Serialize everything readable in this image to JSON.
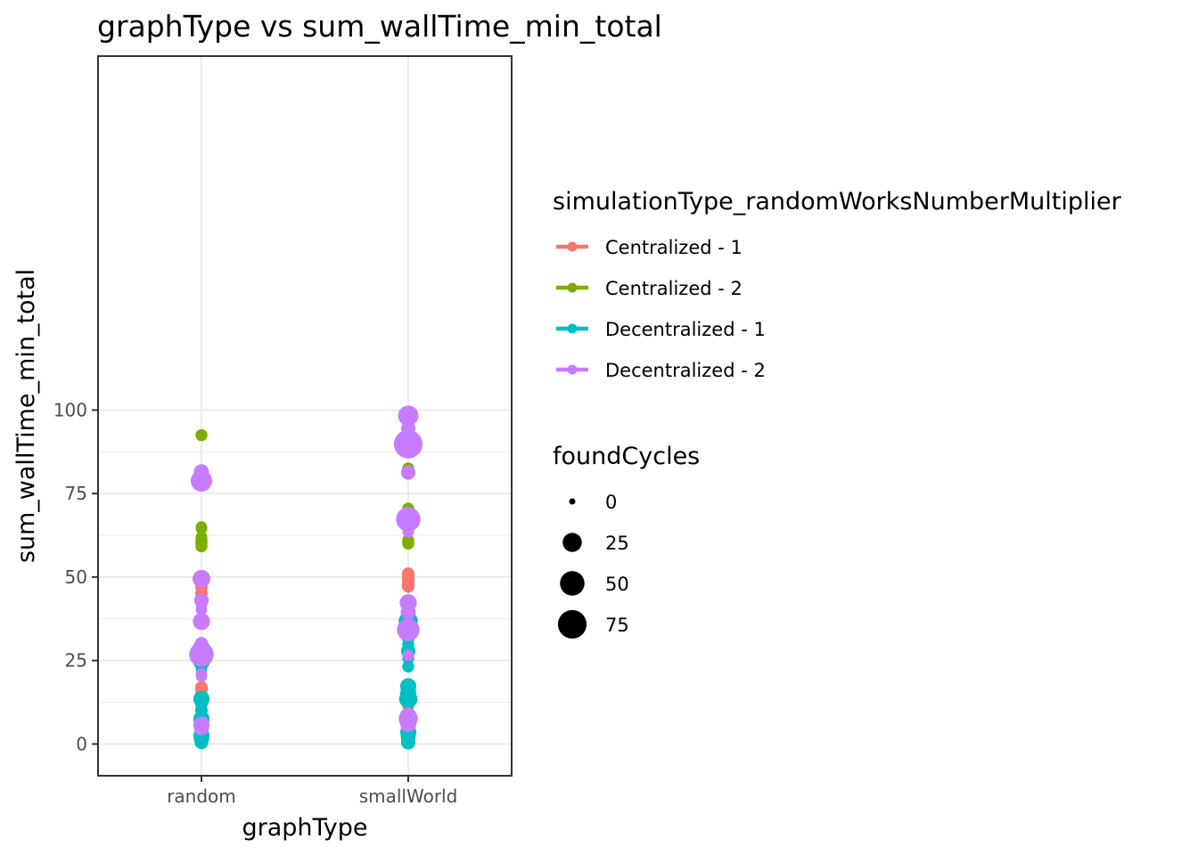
{
  "chart_data": {
    "type": "scatter",
    "title": "graphType  vs  sum_wallTime_min_total",
    "xlabel": "graphType",
    "ylabel": "sum_wallTime_min_total",
    "categories": [
      "random",
      "smallWorld"
    ],
    "ylim": [
      -9.5,
      206
    ],
    "yticks": [
      0,
      25,
      50,
      75,
      100
    ],
    "grid": true,
    "legend_position": "right",
    "color_legend": {
      "title": "simulationType_randomWorksNumberMultiplier",
      "entries": [
        {
          "label": "Centralized - 1",
          "color": "#F8766D"
        },
        {
          "label": "Centralized - 2",
          "color": "#7CAE00"
        },
        {
          "label": "Decentralized - 1",
          "color": "#00BFC4"
        },
        {
          "label": "Decentralized - 2",
          "color": "#C77CFF"
        }
      ]
    },
    "size_legend": {
      "title": "foundCycles",
      "entries": [
        {
          "label": "0",
          "value": 0
        },
        {
          "label": "25",
          "value": 25
        },
        {
          "label": "50",
          "value": 50
        },
        {
          "label": "75",
          "value": 75
        }
      ]
    },
    "series": [
      {
        "name": "Centralized - 1",
        "color": "#F8766D",
        "points": [
          {
            "x": "random",
            "y": 49.5,
            "size": 8
          },
          {
            "x": "random",
            "y": 48.7,
            "size": 8
          },
          {
            "x": "random",
            "y": 48.0,
            "size": 6
          },
          {
            "x": "random",
            "y": 47.0,
            "size": 6
          },
          {
            "x": "random",
            "y": 45.0,
            "size": 6
          },
          {
            "x": "random",
            "y": 17.0,
            "size": 6
          },
          {
            "x": "random",
            "y": 16.3,
            "size": 6
          },
          {
            "x": "random",
            "y": 14.8,
            "size": 6
          },
          {
            "x": "random",
            "y": 13.8,
            "size": 6
          },
          {
            "x": "random",
            "y": 12.8,
            "size": 6
          },
          {
            "x": "random",
            "y": 11.5,
            "size": 4
          },
          {
            "x": "random",
            "y": 2.0,
            "size": 4
          },
          {
            "x": "random",
            "y": 1.0,
            "size": 4
          },
          {
            "x": "random",
            "y": 0.4,
            "size": 4
          },
          {
            "x": "smallWorld",
            "y": 51.0,
            "size": 6
          },
          {
            "x": "smallWorld",
            "y": 50.0,
            "size": 6
          },
          {
            "x": "smallWorld",
            "y": 49.0,
            "size": 6
          },
          {
            "x": "smallWorld",
            "y": 48.0,
            "size": 6
          },
          {
            "x": "smallWorld",
            "y": 47.2,
            "size": 6
          },
          {
            "x": "smallWorld",
            "y": 16.8,
            "size": 6
          },
          {
            "x": "smallWorld",
            "y": 13.0,
            "size": 6
          },
          {
            "x": "smallWorld",
            "y": 12.0,
            "size": 4
          },
          {
            "x": "smallWorld",
            "y": 3.0,
            "size": 4
          },
          {
            "x": "smallWorld",
            "y": 1.2,
            "size": 4
          }
        ]
      },
      {
        "name": "Centralized - 2",
        "color": "#7CAE00",
        "points": [
          {
            "x": "random",
            "y": 92.5,
            "size": 5
          },
          {
            "x": "random",
            "y": 65.0,
            "size": 4
          },
          {
            "x": "random",
            "y": 64.5,
            "size": 4
          },
          {
            "x": "random",
            "y": 62.0,
            "size": 4
          },
          {
            "x": "random",
            "y": 61.2,
            "size": 5
          },
          {
            "x": "random",
            "y": 60.5,
            "size": 5
          },
          {
            "x": "random",
            "y": 60.0,
            "size": 5
          },
          {
            "x": "random",
            "y": 59.2,
            "size": 5
          },
          {
            "x": "random",
            "y": 12.2,
            "size": 4
          },
          {
            "x": "random",
            "y": 11.0,
            "size": 4
          },
          {
            "x": "random",
            "y": 4.5,
            "size": 4
          },
          {
            "x": "random",
            "y": 3.0,
            "size": 4
          },
          {
            "x": "random",
            "y": 2.2,
            "size": 4
          },
          {
            "x": "smallWorld",
            "y": 82.5,
            "size": 5
          },
          {
            "x": "smallWorld",
            "y": 70.5,
            "size": 5
          },
          {
            "x": "smallWorld",
            "y": 61.0,
            "size": 5
          },
          {
            "x": "smallWorld",
            "y": 60.4,
            "size": 5
          },
          {
            "x": "smallWorld",
            "y": 60.0,
            "size": 5
          },
          {
            "x": "smallWorld",
            "y": 12.5,
            "size": 5
          },
          {
            "x": "smallWorld",
            "y": 11.5,
            "size": 5
          },
          {
            "x": "smallWorld",
            "y": 3.5,
            "size": 4
          },
          {
            "x": "smallWorld",
            "y": 1.5,
            "size": 4
          }
        ]
      },
      {
        "name": "Decentralized - 1",
        "color": "#00BFC4",
        "points": [
          {
            "x": "random",
            "y": 29.0,
            "size": 15
          },
          {
            "x": "random",
            "y": 28.5,
            "size": 12
          },
          {
            "x": "random",
            "y": 27.5,
            "size": 8
          },
          {
            "x": "random",
            "y": 26.0,
            "size": 6
          },
          {
            "x": "random",
            "y": 25.0,
            "size": 18
          },
          {
            "x": "random",
            "y": 24.5,
            "size": 15
          },
          {
            "x": "random",
            "y": 22.3,
            "size": 4
          },
          {
            "x": "random",
            "y": 13.5,
            "size": 15
          },
          {
            "x": "random",
            "y": 12.5,
            "size": 8
          },
          {
            "x": "random",
            "y": 10.0,
            "size": 6
          },
          {
            "x": "random",
            "y": 8.5,
            "size": 6
          },
          {
            "x": "random",
            "y": 7.5,
            "size": 15
          },
          {
            "x": "random",
            "y": 7.0,
            "size": 12
          },
          {
            "x": "random",
            "y": 4.5,
            "size": 5
          },
          {
            "x": "random",
            "y": 2.5,
            "size": 15
          },
          {
            "x": "random",
            "y": 1.5,
            "size": 12
          },
          {
            "x": "random",
            "y": 0.5,
            "size": 8
          },
          {
            "x": "smallWorld",
            "y": 36.8,
            "size": 25
          },
          {
            "x": "smallWorld",
            "y": 35.5,
            "size": 22
          },
          {
            "x": "smallWorld",
            "y": 34.5,
            "size": 20
          },
          {
            "x": "smallWorld",
            "y": 33.5,
            "size": 15
          },
          {
            "x": "smallWorld",
            "y": 32.0,
            "size": 8
          },
          {
            "x": "smallWorld",
            "y": 29.8,
            "size": 5
          },
          {
            "x": "smallWorld",
            "y": 27.8,
            "size": 10
          },
          {
            "x": "smallWorld",
            "y": 25.7,
            "size": 5
          },
          {
            "x": "smallWorld",
            "y": 23.2,
            "size": 5
          },
          {
            "x": "smallWorld",
            "y": 17.3,
            "size": 15
          },
          {
            "x": "smallWorld",
            "y": 16.0,
            "size": 12
          },
          {
            "x": "smallWorld",
            "y": 15.0,
            "size": 15
          },
          {
            "x": "smallWorld",
            "y": 14.0,
            "size": 12
          },
          {
            "x": "smallWorld",
            "y": 13.5,
            "size": 22
          },
          {
            "x": "smallWorld",
            "y": 3.5,
            "size": 15
          },
          {
            "x": "smallWorld",
            "y": 2.5,
            "size": 12
          },
          {
            "x": "smallWorld",
            "y": 1.5,
            "size": 10
          },
          {
            "x": "smallWorld",
            "y": 0.5,
            "size": 10
          }
        ]
      },
      {
        "name": "Decentralized - 2",
        "color": "#C77CFF",
        "points": [
          {
            "x": "random",
            "y": 81.5,
            "size": 12
          },
          {
            "x": "random",
            "y": 78.8,
            "size": 35
          },
          {
            "x": "random",
            "y": 49.5,
            "size": 20
          },
          {
            "x": "random",
            "y": 43.0,
            "size": 10
          },
          {
            "x": "random",
            "y": 41.8,
            "size": 4
          },
          {
            "x": "random",
            "y": 40.2,
            "size": 4
          },
          {
            "x": "random",
            "y": 36.7,
            "size": 18
          },
          {
            "x": "random",
            "y": 30.0,
            "size": 8
          },
          {
            "x": "random",
            "y": 26.8,
            "size": 50
          },
          {
            "x": "random",
            "y": 21.0,
            "size": 4
          },
          {
            "x": "random",
            "y": 20.3,
            "size": 4
          },
          {
            "x": "random",
            "y": 5.8,
            "size": 15
          },
          {
            "x": "random",
            "y": 4.8,
            "size": 12
          },
          {
            "x": "smallWorld",
            "y": 98.3,
            "size": 30
          },
          {
            "x": "smallWorld",
            "y": 94.5,
            "size": 10
          },
          {
            "x": "smallWorld",
            "y": 89.8,
            "size": 75
          },
          {
            "x": "smallWorld",
            "y": 81.3,
            "size": 10
          },
          {
            "x": "smallWorld",
            "y": 67.3,
            "size": 50
          },
          {
            "x": "smallWorld",
            "y": 66.5,
            "size": 12
          },
          {
            "x": "smallWorld",
            "y": 63.5,
            "size": 4
          },
          {
            "x": "smallWorld",
            "y": 42.3,
            "size": 18
          },
          {
            "x": "smallWorld",
            "y": 39.5,
            "size": 12
          },
          {
            "x": "smallWorld",
            "y": 34.2,
            "size": 40
          },
          {
            "x": "smallWorld",
            "y": 26.5,
            "size": 4
          },
          {
            "x": "smallWorld",
            "y": 8.5,
            "size": 15
          },
          {
            "x": "smallWorld",
            "y": 7.6,
            "size": 25
          },
          {
            "x": "smallWorld",
            "y": 6.0,
            "size": 15
          }
        ]
      }
    ]
  }
}
